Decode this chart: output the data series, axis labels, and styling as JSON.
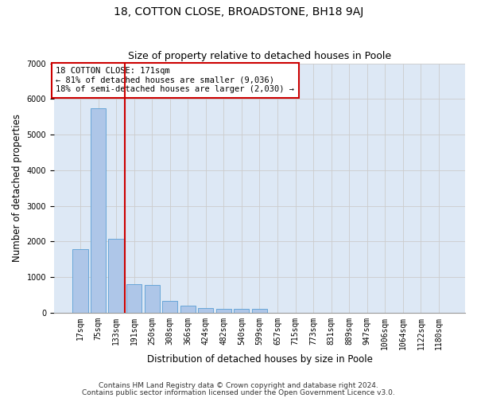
{
  "title": "18, COTTON CLOSE, BROADSTONE, BH18 9AJ",
  "subtitle": "Size of property relative to detached houses in Poole",
  "xlabel": "Distribution of detached houses by size in Poole",
  "ylabel": "Number of detached properties",
  "bar_values": [
    1780,
    5750,
    2080,
    800,
    790,
    340,
    200,
    125,
    115,
    100,
    105,
    0,
    0,
    0,
    0,
    0,
    0,
    0,
    0,
    0,
    0
  ],
  "bar_labels": [
    "17sqm",
    "75sqm",
    "133sqm",
    "191sqm",
    "250sqm",
    "308sqm",
    "366sqm",
    "424sqm",
    "482sqm",
    "540sqm",
    "599sqm",
    "657sqm",
    "715sqm",
    "773sqm",
    "831sqm",
    "889sqm",
    "947sqm",
    "1006sqm",
    "1064sqm",
    "1122sqm",
    "1180sqm"
  ],
  "bar_color": "#aec6e8",
  "bar_edge_color": "#5a9fd4",
  "annotation_line1": "18 COTTON CLOSE: 171sqm",
  "annotation_line2": "← 81% of detached houses are smaller (9,036)",
  "annotation_line3": "18% of semi-detached houses are larger (2,030) →",
  "vline_x_index": 2.5,
  "vline_color": "#cc0000",
  "grid_color": "#cccccc",
  "background_color": "#dde8f5",
  "footer_line1": "Contains HM Land Registry data © Crown copyright and database right 2024.",
  "footer_line2": "Contains public sector information licensed under the Open Government Licence v3.0.",
  "ylim": [
    0,
    7000
  ],
  "yticks": [
    0,
    1000,
    2000,
    3000,
    4000,
    5000,
    6000,
    7000
  ],
  "title_fontsize": 10,
  "subtitle_fontsize": 9,
  "label_fontsize": 8.5,
  "tick_fontsize": 7,
  "annot_fontsize": 7.5,
  "footer_fontsize": 6.5
}
